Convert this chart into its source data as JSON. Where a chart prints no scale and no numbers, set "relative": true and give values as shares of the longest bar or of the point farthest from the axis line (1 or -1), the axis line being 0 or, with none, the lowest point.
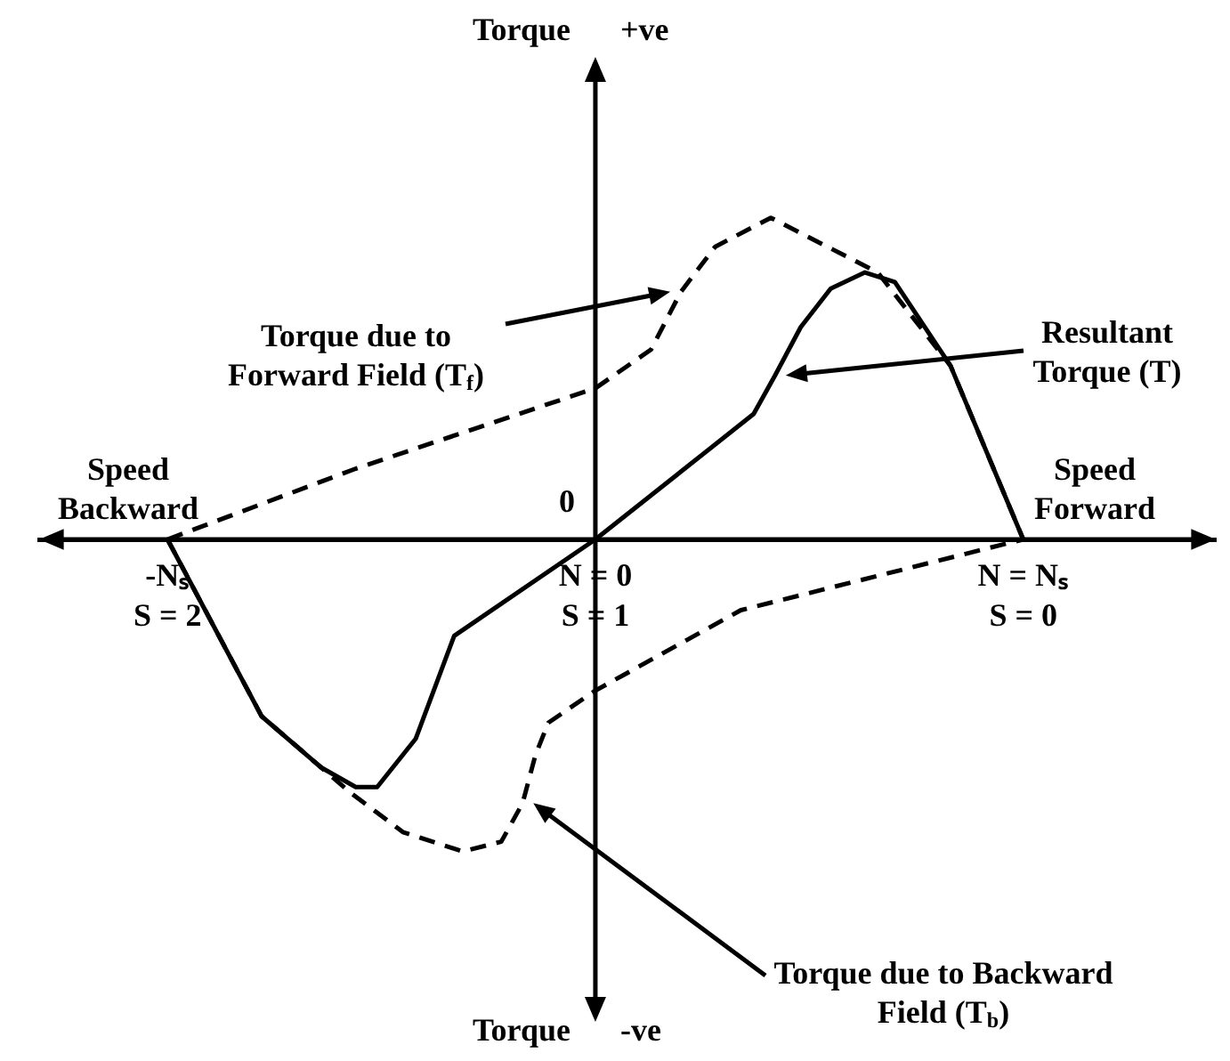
{
  "chart_data": {
    "type": "line",
    "relative": true,
    "marker": "none",
    "xlim": [
      2.3,
      -0.45
    ],
    "xticks": [
      {
        "value": 2,
        "label": "-Nₛ\nS = 2"
      },
      {
        "value": 1,
        "label": "N = 0\nS = 1"
      },
      {
        "value": 0,
        "label": "N = Nₛ\nS = 0"
      }
    ],
    "annotations": [
      "Torque",
      "+ve",
      "Torque",
      "-ve",
      "Speed Backward",
      "Speed Forward",
      "0"
    ],
    "series": [
      {
        "name": "Torque due to Forward Field (T$_{f}$)",
        "color": "#000000",
        "line_style": "dashed",
        "x": [
          2,
          1.56,
          1,
          0.87,
          0.8,
          0.72,
          0.59,
          0.34,
          0.17,
          0
        ],
        "values": [
          0,
          0.22,
          0.47,
          0.59,
          0.77,
          0.91,
          1,
          0.83,
          0.54,
          0
        ]
      },
      {
        "name": "Resultant Torque (T)",
        "color": "#000000",
        "line_style": "solid",
        "x": [
          2,
          1.78,
          1.64,
          1.56,
          1.51,
          1.42,
          1.33,
          1,
          0.63,
          0.58,
          0.52,
          0.45,
          0.37,
          0.3,
          0.17,
          0
        ],
        "values": [
          0,
          -0.55,
          -0.71,
          -0.77,
          -0.77,
          -0.62,
          -0.3,
          0,
          0.39,
          0.51,
          0.66,
          0.78,
          0.83,
          0.8,
          0.54,
          0
        ]
      },
      {
        "name": "Torque due to Backward Field (T$_{b}$)",
        "color": "#000000",
        "line_style": "dashed",
        "x": [
          2,
          1.78,
          1.57,
          1.45,
          1.31,
          1.22,
          1.17,
          1.14,
          1.11,
          1,
          0.66,
          0
        ],
        "values": [
          0,
          -0.55,
          -0.79,
          -0.91,
          -0.97,
          -0.94,
          -0.82,
          -0.67,
          -0.57,
          -0.47,
          -0.22,
          0
        ]
      }
    ]
  }
}
